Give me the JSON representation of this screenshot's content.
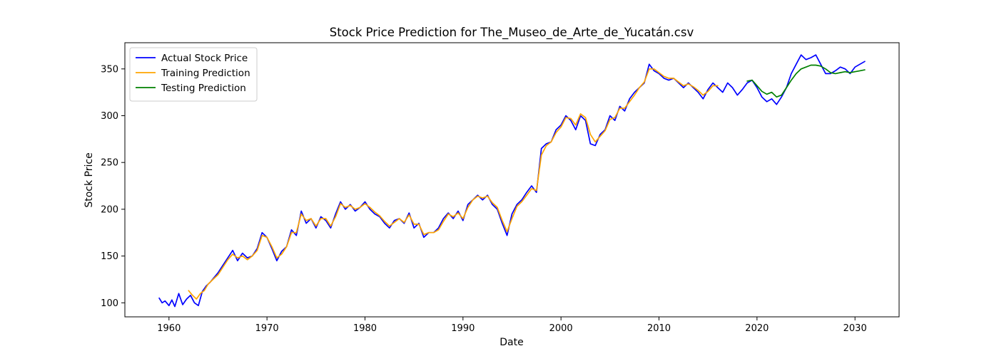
{
  "chart_data": {
    "type": "line",
    "title": "Stock Price Prediction for The_Museo_de_Arte_de_Yucatán.csv",
    "xlabel": "Date",
    "ylabel": "Stock Price",
    "xlim": [
      1955.5,
      2034.5
    ],
    "ylim": [
      85,
      378
    ],
    "x_ticks": [
      1960,
      1970,
      1980,
      1990,
      2000,
      2010,
      2020,
      2030
    ],
    "y_ticks": [
      100,
      150,
      200,
      250,
      300,
      350
    ],
    "grid": false,
    "legend_position": "top-left",
    "series": [
      {
        "name": "Actual Stock Price",
        "color": "#0000ff",
        "x": [
          1959.0,
          1959.3,
          1959.6,
          1960.0,
          1960.3,
          1960.6,
          1961.0,
          1961.4,
          1961.8,
          1962.2,
          1962.6,
          1963.0,
          1963.4,
          1963.8,
          1964.2,
          1964.6,
          1965.0,
          1965.5,
          1966.0,
          1966.5,
          1967.0,
          1967.5,
          1968.0,
          1968.5,
          1969.0,
          1969.5,
          1970.0,
          1970.5,
          1971.0,
          1971.5,
          1972.0,
          1972.5,
          1973.0,
          1973.5,
          1974.0,
          1974.5,
          1975.0,
          1975.5,
          1976.0,
          1976.5,
          1977.0,
          1977.5,
          1978.0,
          1978.5,
          1979.0,
          1979.5,
          1980.0,
          1980.5,
          1981.0,
          1981.5,
          1982.0,
          1982.5,
          1983.0,
          1983.5,
          1984.0,
          1984.5,
          1985.0,
          1985.5,
          1986.0,
          1986.5,
          1987.0,
          1987.5,
          1988.0,
          1988.5,
          1989.0,
          1989.5,
          1990.0,
          1990.5,
          1991.0,
          1991.5,
          1992.0,
          1992.5,
          1993.0,
          1993.5,
          1994.0,
          1994.5,
          1995.0,
          1995.5,
          1996.0,
          1996.5,
          1997.0,
          1997.5,
          1998.0,
          1998.5,
          1999.0,
          1999.5,
          2000.0,
          2000.5,
          2001.0,
          2001.5,
          2002.0,
          2002.5,
          2003.0,
          2003.5,
          2004.0,
          2004.5,
          2005.0,
          2005.5,
          2006.0,
          2006.5,
          2007.0,
          2007.5,
          2008.0,
          2008.5,
          2009.0,
          2009.5,
          2010.0,
          2010.5,
          2011.0,
          2011.5,
          2012.0,
          2012.5,
          2013.0,
          2013.5,
          2014.0,
          2014.5,
          2015.0,
          2015.5,
          2016.0,
          2016.5,
          2017.0,
          2017.5,
          2018.0,
          2018.5,
          2019.0,
          2019.5,
          2020.0,
          2020.5,
          2021.0,
          2021.5,
          2022.0,
          2022.5,
          2023.0,
          2023.5,
          2024.0,
          2024.5,
          2025.0,
          2025.5,
          2026.0,
          2026.5,
          2027.0,
          2027.5,
          2028.0,
          2028.5,
          2029.0,
          2029.5,
          2030.0,
          2030.5,
          2031.0
        ],
        "values": [
          105,
          100,
          102,
          97,
          103,
          96,
          110,
          98,
          104,
          108,
          100,
          97,
          112,
          118,
          122,
          127,
          132,
          140,
          148,
          156,
          145,
          153,
          148,
          150,
          158,
          175,
          170,
          158,
          145,
          155,
          160,
          178,
          172,
          198,
          185,
          190,
          180,
          192,
          188,
          180,
          195,
          208,
          200,
          205,
          198,
          202,
          208,
          200,
          195,
          192,
          185,
          180,
          188,
          190,
          185,
          196,
          180,
          185,
          170,
          175,
          175,
          180,
          190,
          196,
          190,
          198,
          188,
          205,
          210,
          215,
          210,
          215,
          205,
          200,
          185,
          172,
          195,
          205,
          210,
          218,
          225,
          218,
          265,
          270,
          272,
          285,
          290,
          300,
          295,
          285,
          300,
          295,
          270,
          268,
          280,
          285,
          300,
          295,
          310,
          305,
          318,
          325,
          330,
          335,
          355,
          348,
          345,
          340,
          338,
          340,
          335,
          330,
          335,
          330,
          325,
          318,
          328,
          335,
          330,
          325,
          335,
          330,
          322,
          328,
          335,
          338,
          330,
          320,
          315,
          318,
          312,
          320,
          330,
          345,
          355,
          365,
          360,
          362,
          365,
          355,
          345,
          345,
          348,
          352,
          350,
          345,
          352,
          355,
          358
        ]
      },
      {
        "name": "Training Prediction",
        "color": "#ffa500",
        "x": [
          1962.0,
          1962.4,
          1962.8,
          1963.2,
          1963.6,
          1964.0,
          1964.5,
          1965.0,
          1965.5,
          1966.0,
          1966.5,
          1967.0,
          1967.5,
          1968.0,
          1968.5,
          1969.0,
          1969.5,
          1970.0,
          1970.5,
          1971.0,
          1971.5,
          1972.0,
          1972.5,
          1973.0,
          1973.5,
          1974.0,
          1974.5,
          1975.0,
          1975.5,
          1976.0,
          1976.5,
          1977.0,
          1977.5,
          1978.0,
          1978.5,
          1979.0,
          1979.5,
          1980.0,
          1980.5,
          1981.0,
          1981.5,
          1982.0,
          1982.5,
          1983.0,
          1983.5,
          1984.0,
          1984.5,
          1985.0,
          1985.5,
          1986.0,
          1986.5,
          1987.0,
          1987.5,
          1988.0,
          1988.5,
          1989.0,
          1989.5,
          1990.0,
          1990.5,
          1991.0,
          1991.5,
          1992.0,
          1992.5,
          1993.0,
          1993.5,
          1994.0,
          1994.5,
          1995.0,
          1995.5,
          1996.0,
          1996.5,
          1997.0,
          1997.5,
          1998.0,
          1998.5,
          1999.0,
          1999.5,
          2000.0,
          2000.5,
          2001.0,
          2001.5,
          2002.0,
          2002.5,
          2003.0,
          2003.5,
          2004.0,
          2004.5,
          2005.0,
          2005.5,
          2006.0,
          2006.5,
          2007.0,
          2007.5,
          2008.0,
          2008.5,
          2009.0,
          2009.5,
          2010.0,
          2010.5,
          2011.0,
          2011.5,
          2012.0,
          2012.5,
          2013.0,
          2013.5,
          2014.0,
          2014.5,
          2015.0,
          2015.5,
          2016.0
        ],
        "values": [
          113,
          108,
          104,
          110,
          113,
          120,
          125,
          130,
          138,
          146,
          152,
          148,
          150,
          146,
          150,
          156,
          172,
          170,
          160,
          148,
          152,
          160,
          175,
          175,
          195,
          188,
          190,
          182,
          190,
          190,
          182,
          192,
          206,
          202,
          204,
          200,
          202,
          206,
          202,
          197,
          193,
          187,
          182,
          186,
          190,
          186,
          194,
          184,
          184,
          173,
          175,
          175,
          178,
          187,
          195,
          192,
          196,
          190,
          202,
          210,
          214,
          212,
          214,
          207,
          202,
          188,
          176,
          190,
          203,
          208,
          215,
          222,
          220,
          258,
          268,
          272,
          282,
          288,
          298,
          297,
          290,
          302,
          298,
          280,
          272,
          278,
          284,
          296,
          298,
          308,
          308,
          315,
          322,
          330,
          336,
          350,
          350,
          346,
          342,
          340,
          340,
          336,
          332,
          334,
          331,
          327,
          322,
          326,
          332,
          332
        ]
      },
      {
        "name": "Testing Prediction",
        "color": "#008000",
        "x": [
          2019.0,
          2019.5,
          2020.0,
          2020.5,
          2021.0,
          2021.5,
          2022.0,
          2022.5,
          2023.0,
          2023.5,
          2024.0,
          2024.5,
          2025.0,
          2025.5,
          2026.0,
          2026.5,
          2027.0,
          2027.5,
          2028.0,
          2028.5,
          2029.0,
          2029.5,
          2030.0,
          2030.5,
          2031.0
        ],
        "values": [
          337,
          338,
          332,
          326,
          323,
          325,
          320,
          322,
          330,
          338,
          345,
          350,
          352,
          354,
          354,
          353,
          350,
          346,
          345,
          346,
          347,
          346,
          347,
          348,
          349
        ]
      }
    ]
  }
}
